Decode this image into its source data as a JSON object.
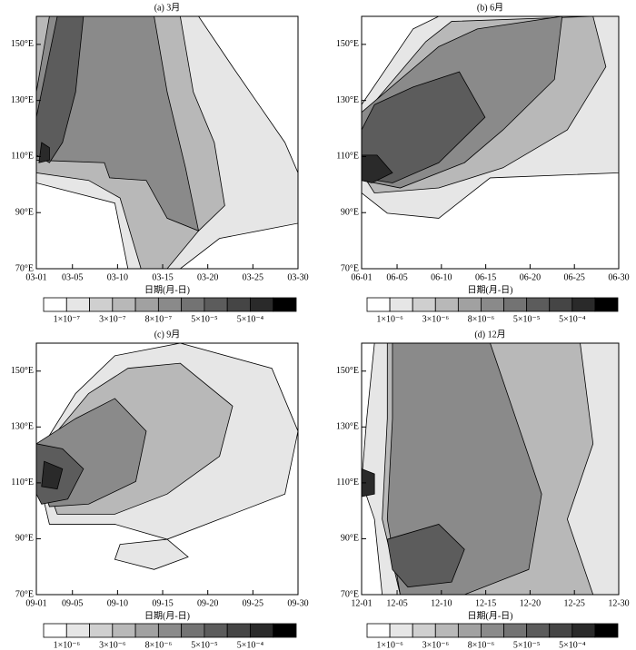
{
  "chart_data": [
    {
      "type": "contour",
      "title": "(a) 3月",
      "xlabel": "日期(月-日)",
      "xlim": [
        1,
        30
      ],
      "xticks": [
        {
          "value": 1,
          "label": "03-01"
        },
        {
          "value": 5,
          "label": "03-05"
        },
        {
          "value": 10,
          "label": "03-10"
        },
        {
          "value": 15,
          "label": "03-15"
        },
        {
          "value": 20,
          "label": "03-20"
        },
        {
          "value": 25,
          "label": "03-25"
        },
        {
          "value": 30,
          "label": "03-30"
        }
      ],
      "ylim": [
        70,
        160
      ],
      "yticks": [
        {
          "value": 70,
          "label": "70°E"
        },
        {
          "value": 90,
          "label": "90°E"
        },
        {
          "value": 110,
          "label": "110°E"
        },
        {
          "value": 130,
          "label": "130°E"
        },
        {
          "value": 150,
          "label": "150°E"
        }
      ],
      "colorbar": {
        "colors": [
          "#ffffff",
          "#e6e6e6",
          "#cfcfcf",
          "#b8b8b8",
          "#a1a1a1",
          "#8a8a8a",
          "#737373",
          "#5c5c5c",
          "#454545",
          "#2a2a2a",
          "#000000"
        ],
        "levels": [
          {
            "value": 1e-07,
            "label": "1×10⁻⁷"
          },
          null,
          {
            "value": 3e-07,
            "label": "3×10⁻⁷"
          },
          null,
          {
            "value": 8e-07,
            "label": "8×10⁻⁷"
          },
          null,
          {
            "value": 5e-05,
            "label": "5×10⁻⁵"
          },
          null,
          {
            "value": 0.0005,
            "label": "5×10⁻⁴"
          },
          null
        ]
      }
    },
    {
      "type": "contour",
      "title": "(b) 6月",
      "xlabel": "日期(月-日)",
      "xlim": [
        1,
        30
      ],
      "xticks": [
        {
          "value": 1,
          "label": "06-01"
        },
        {
          "value": 5,
          "label": "06-05"
        },
        {
          "value": 10,
          "label": "06-10"
        },
        {
          "value": 15,
          "label": "06-15"
        },
        {
          "value": 20,
          "label": "06-20"
        },
        {
          "value": 25,
          "label": "06-25"
        },
        {
          "value": 30,
          "label": "06-30"
        }
      ],
      "ylim": [
        70,
        160
      ],
      "yticks": [
        {
          "value": 70,
          "label": "70°E"
        },
        {
          "value": 90,
          "label": "90°E"
        },
        {
          "value": 110,
          "label": "110°E"
        },
        {
          "value": 130,
          "label": "130°E"
        },
        {
          "value": 150,
          "label": "150°E"
        }
      ],
      "colorbar": {
        "colors": [
          "#ffffff",
          "#e6e6e6",
          "#cfcfcf",
          "#b8b8b8",
          "#a1a1a1",
          "#8a8a8a",
          "#737373",
          "#5c5c5c",
          "#454545",
          "#2a2a2a",
          "#000000"
        ],
        "levels": [
          {
            "value": 1e-06,
            "label": "1×10⁻⁶"
          },
          null,
          {
            "value": 3e-06,
            "label": "3×10⁻⁶"
          },
          null,
          {
            "value": 8e-06,
            "label": "8×10⁻⁶"
          },
          null,
          {
            "value": 5e-05,
            "label": "5×10⁻⁵"
          },
          null,
          {
            "value": 0.0005,
            "label": "5×10⁻⁴"
          },
          null
        ]
      }
    },
    {
      "type": "contour",
      "title": "(c) 9月",
      "xlabel": "日期(月-日)",
      "xlim": [
        1,
        30
      ],
      "xticks": [
        {
          "value": 1,
          "label": "09-01"
        },
        {
          "value": 5,
          "label": "09-05"
        },
        {
          "value": 10,
          "label": "09-10"
        },
        {
          "value": 15,
          "label": "09-15"
        },
        {
          "value": 20,
          "label": "09-20"
        },
        {
          "value": 25,
          "label": "09-25"
        },
        {
          "value": 30,
          "label": "09-30"
        }
      ],
      "ylim": [
        70,
        160
      ],
      "yticks": [
        {
          "value": 70,
          "label": "70°E"
        },
        {
          "value": 90,
          "label": "90°E"
        },
        {
          "value": 110,
          "label": "110°E"
        },
        {
          "value": 130,
          "label": "130°E"
        },
        {
          "value": 150,
          "label": "150°E"
        }
      ],
      "colorbar": {
        "colors": [
          "#ffffff",
          "#e6e6e6",
          "#cfcfcf",
          "#b8b8b8",
          "#a1a1a1",
          "#8a8a8a",
          "#737373",
          "#5c5c5c",
          "#454545",
          "#2a2a2a",
          "#000000"
        ],
        "levels": [
          {
            "value": 1e-06,
            "label": "1×10⁻⁶"
          },
          null,
          {
            "value": 3e-06,
            "label": "3×10⁻⁶"
          },
          null,
          {
            "value": 8e-06,
            "label": "8×10⁻⁶"
          },
          null,
          {
            "value": 5e-05,
            "label": "5×10⁻⁵"
          },
          null,
          {
            "value": 0.0005,
            "label": "5×10⁻⁴"
          },
          null
        ]
      }
    },
    {
      "type": "contour",
      "title": "(d) 12月",
      "xlabel": "日期(月-日)",
      "xlim": [
        1,
        30
      ],
      "xticks": [
        {
          "value": 1,
          "label": "12-01"
        },
        {
          "value": 5,
          "label": "12-05"
        },
        {
          "value": 10,
          "label": "12-10"
        },
        {
          "value": 15,
          "label": "12-15"
        },
        {
          "value": 20,
          "label": "12-20"
        },
        {
          "value": 25,
          "label": "12-25"
        },
        {
          "value": 30,
          "label": "12-30"
        }
      ],
      "ylim": [
        70,
        160
      ],
      "yticks": [
        {
          "value": 70,
          "label": "70°E"
        },
        {
          "value": 90,
          "label": "90°E"
        },
        {
          "value": 110,
          "label": "110°E"
        },
        {
          "value": 130,
          "label": "130°E"
        },
        {
          "value": 150,
          "label": "150°E"
        }
      ],
      "colorbar": {
        "colors": [
          "#ffffff",
          "#e6e6e6",
          "#cfcfcf",
          "#b8b8b8",
          "#a1a1a1",
          "#8a8a8a",
          "#737373",
          "#5c5c5c",
          "#454545",
          "#2a2a2a",
          "#000000"
        ],
        "levels": [
          {
            "value": 1e-06,
            "label": "1×10⁻⁶"
          },
          null,
          {
            "value": 3e-06,
            "label": "3×10⁻⁶"
          },
          null,
          {
            "value": 8e-06,
            "label": "8×10⁻⁶"
          },
          null,
          {
            "value": 5e-05,
            "label": "5×10⁻⁵"
          },
          null,
          {
            "value": 0.0005,
            "label": "5×10⁻⁴"
          },
          null
        ]
      }
    }
  ]
}
